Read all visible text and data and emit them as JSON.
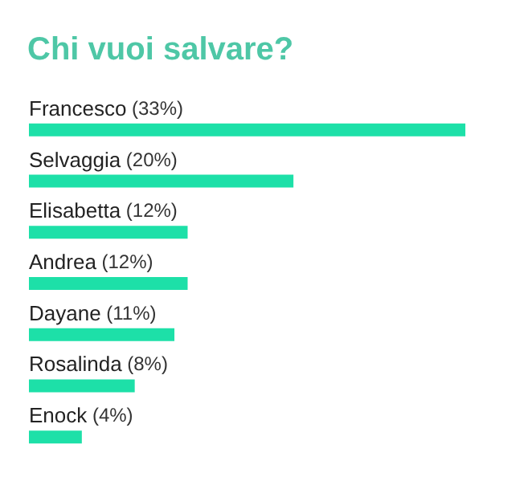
{
  "chart_data": {
    "type": "bar",
    "title": "Chi vuoi salvare?",
    "orientation": "horizontal",
    "categories": [
      "Francesco",
      "Selvaggia",
      "Elisabetta",
      "Andrea",
      "Dayane",
      "Rosalinda",
      "Enock"
    ],
    "values": [
      33,
      20,
      12,
      12,
      11,
      8,
      4
    ],
    "value_labels": [
      "(33%)",
      "(20%)",
      "(12%)",
      "(12%)",
      "(11%)",
      "(8%)",
      "(4%)"
    ],
    "color": "#1de0a8"
  }
}
